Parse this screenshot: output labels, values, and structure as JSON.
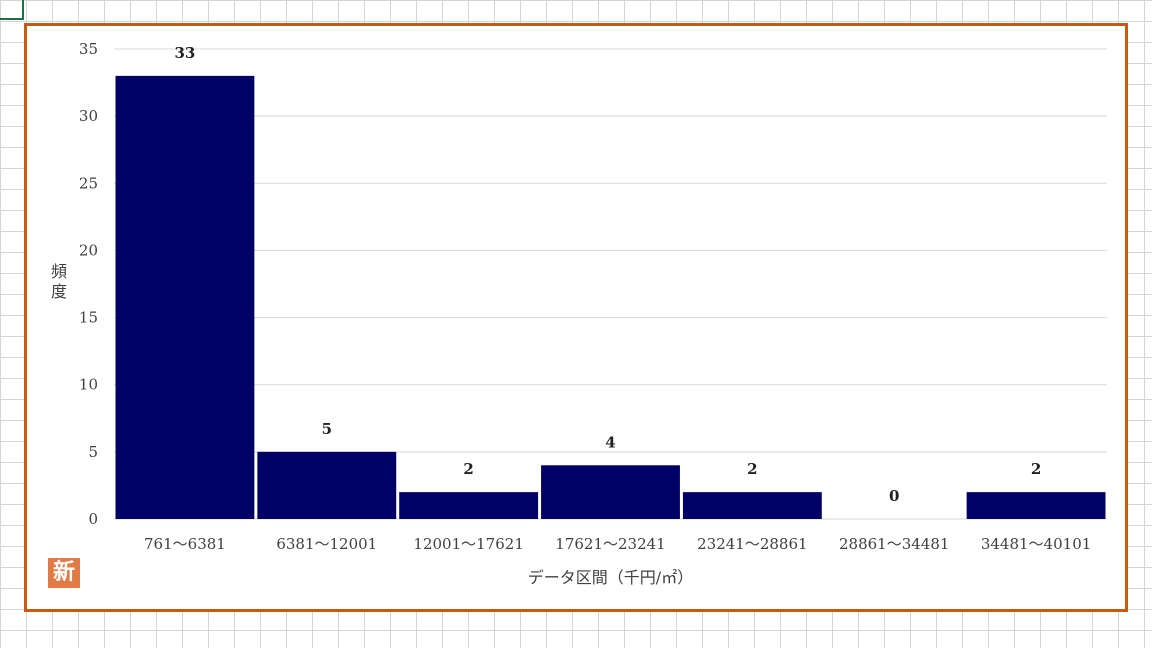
{
  "chart_data": {
    "type": "bar",
    "categories": [
      "761～6381",
      "6381～12001",
      "12001～17621",
      "17621～23241",
      "23241～28861",
      "28861～34481",
      "34481～40101"
    ],
    "values": [
      33,
      5,
      2,
      4,
      2,
      0,
      2
    ],
    "xlabel": "データ区間（千円/㎡）",
    "ylabel": "頻度",
    "ylim": [
      0,
      35
    ],
    "yticks": [
      0,
      5,
      10,
      15,
      20,
      25,
      30,
      35
    ],
    "grid": true,
    "legend": "none",
    "bar_color": "#000066",
    "gridline_color": "#d9d9d9"
  },
  "badge": {
    "label": "新"
  },
  "colors": {
    "frame": "#c55a11",
    "badge": "#e07b46",
    "cell_cursor": "#1e7145"
  }
}
